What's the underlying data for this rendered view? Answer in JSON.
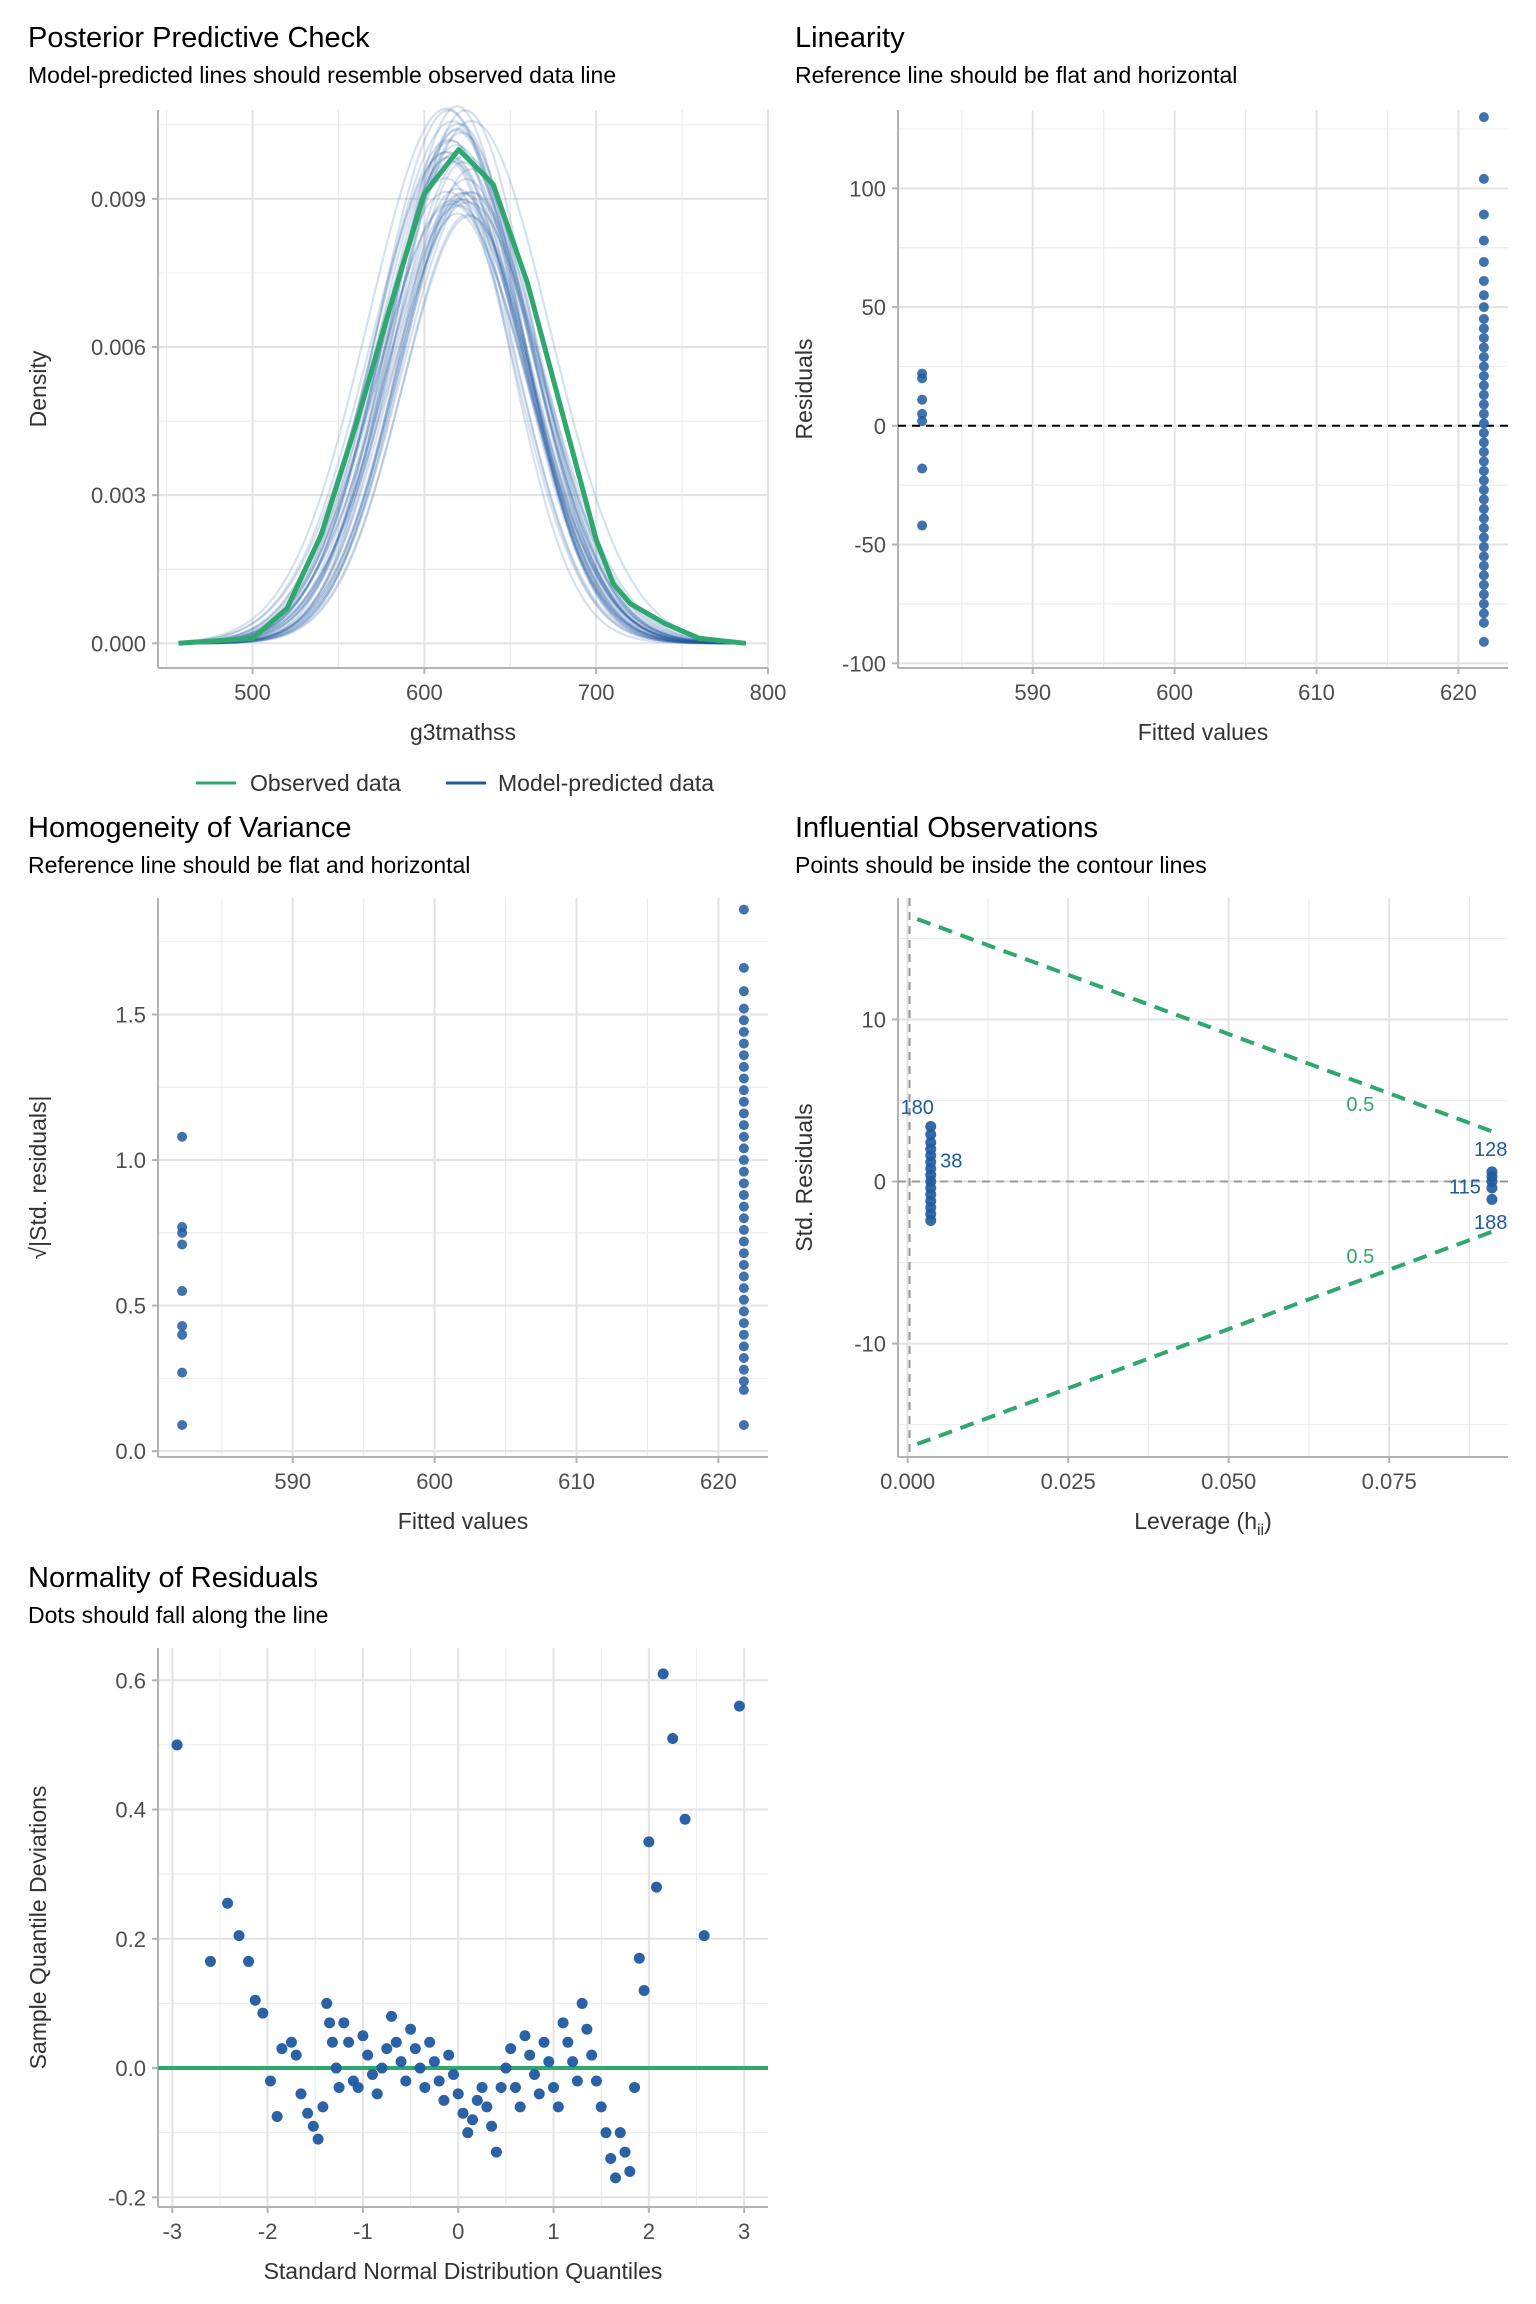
{
  "panels": {
    "ppc": {
      "title": "Posterior Predictive Check",
      "subtitle": "Model-predicted lines should resemble observed data line"
    },
    "lin": {
      "title": "Linearity",
      "subtitle": "Reference line should be flat and horizontal"
    },
    "hov": {
      "title": "Homogeneity of Variance",
      "subtitle": "Reference line should be flat and horizontal"
    },
    "inf": {
      "title": "Influential Observations",
      "subtitle": "Points should be inside the contour lines"
    },
    "nor": {
      "title": "Normality of Residuals",
      "subtitle": "Dots should fall along the line"
    }
  },
  "colors": {
    "observed": "#2fa86f",
    "predicted": "#1f5aa0",
    "points": "#1f5aa0",
    "contour": "#2fa86f",
    "grid": "#e3e3e3"
  },
  "chart_data": [
    {
      "id": "ppc",
      "type": "line",
      "title": "Posterior Predictive Check",
      "subtitle": "Model-predicted lines should resemble observed data line",
      "xlabel": "g3tmathss",
      "ylabel": "Density",
      "xlim": [
        445,
        800
      ],
      "ylim": [
        -0.0005,
        0.0108
      ],
      "xticks": [
        500,
        600,
        700,
        800
      ],
      "yticks": [
        0.0,
        0.003,
        0.006,
        0.009
      ],
      "ytick_labels": [
        "0.000",
        "0.003",
        "0.006",
        "0.009"
      ],
      "legend": {
        "position": "bottom",
        "entries": [
          "Observed data",
          "Model-predicted data"
        ]
      },
      "series": [
        {
          "name": "Observed data",
          "color": "#2fa86f",
          "x": [
            457,
            500,
            520,
            540,
            560,
            580,
            600,
            620,
            640,
            660,
            680,
            700,
            710,
            720,
            740,
            760,
            787
          ],
          "y": [
            0.0,
            0.0001,
            0.0007,
            0.0022,
            0.0044,
            0.0068,
            0.0091,
            0.01,
            0.0093,
            0.0073,
            0.0047,
            0.0021,
            0.0012,
            0.0008,
            0.0004,
            0.0001,
            0.0
          ]
        },
        {
          "name": "Model-predicted data",
          "color": "#1f5aa0",
          "model": "normal",
          "mean": 620,
          "sd": 40,
          "peak_range": [
            0.0086,
            0.0109
          ],
          "draws": 40
        }
      ]
    },
    {
      "id": "lin",
      "type": "scatter",
      "title": "Linearity",
      "subtitle": "Reference line should be flat and horizontal",
      "xlabel": "Fitted values",
      "ylabel": "Residuals",
      "xlim": [
        580.5,
        623.5
      ],
      "ylim": [
        -102,
        133
      ],
      "xticks": [
        590,
        600,
        610,
        620
      ],
      "yticks": [
        -100,
        -50,
        0,
        50,
        100
      ],
      "reference_line": 0,
      "groups": [
        {
          "x": 582.2,
          "y": [
            22,
            20,
            11,
            5,
            2,
            -18,
            -42
          ]
        },
        {
          "x": 621.8,
          "y": [
            130,
            104,
            89,
            78,
            69,
            61,
            55,
            50,
            45,
            41,
            37,
            33,
            29,
            25,
            21,
            17,
            13,
            9,
            5,
            1,
            -3,
            -7,
            -11,
            -15,
            -19,
            -23,
            -27,
            -31,
            -35,
            -39,
            -43,
            -47,
            -51,
            -55,
            -59,
            -63,
            -67,
            -71,
            -75,
            -79,
            -83,
            -91
          ]
        }
      ]
    },
    {
      "id": "hov",
      "type": "scatter",
      "title": "Homogeneity of Variance",
      "subtitle": "Reference line should be flat and horizontal",
      "xlabel": "Fitted values",
      "ylabel": "√|Std. residuals|",
      "xlim": [
        580.5,
        623.5
      ],
      "ylim": [
        -0.02,
        1.9
      ],
      "xticks": [
        590,
        600,
        610,
        620
      ],
      "yticks": [
        0.0,
        0.5,
        1.0,
        1.5
      ],
      "ytick_labels": [
        "0.0",
        "0.5",
        "1.0",
        "1.5"
      ],
      "groups": [
        {
          "x": 582.2,
          "y": [
            1.08,
            0.77,
            0.75,
            0.71,
            0.55,
            0.43,
            0.4,
            0.27,
            0.09
          ]
        },
        {
          "x": 621.8,
          "y": [
            1.86,
            1.66,
            1.58,
            1.52,
            1.48,
            1.44,
            1.4,
            1.36,
            1.32,
            1.28,
            1.24,
            1.2,
            1.16,
            1.12,
            1.08,
            1.04,
            1.0,
            0.96,
            0.92,
            0.88,
            0.84,
            0.8,
            0.76,
            0.72,
            0.68,
            0.64,
            0.6,
            0.56,
            0.52,
            0.48,
            0.44,
            0.4,
            0.36,
            0.32,
            0.28,
            0.24,
            0.21,
            0.09
          ]
        }
      ]
    },
    {
      "id": "inf",
      "type": "scatter",
      "title": "Influential Observations",
      "subtitle": "Points should be inside the contour lines",
      "xlabel": "Leverage (h",
      "xlabel_sub": "ii",
      "xlabel_end": ")",
      "ylabel": "Std. Residuals",
      "xlim": [
        -0.0015,
        0.0935
      ],
      "ylim": [
        -17,
        17.5
      ],
      "xticks": [
        0.0,
        0.025,
        0.05,
        0.075
      ],
      "xtick_labels": [
        "0.000",
        "0.025",
        "0.050",
        "0.075"
      ],
      "yticks": [
        -10,
        0,
        10
      ],
      "reference_h": 0,
      "reference_v": 0.0003,
      "contour_label": "0.5",
      "contour_labels": [
        {
          "x": 0.0705,
          "y": 4.8
        },
        {
          "x": 0.0705,
          "y": -4.6
        }
      ],
      "contour_upper": [
        [
          0.0015,
          16.2
        ],
        [
          0.091,
          3.1
        ]
      ],
      "contour_lower": [
        [
          0.0015,
          -16.2
        ],
        [
          0.091,
          -3.1
        ]
      ],
      "groups": [
        {
          "x": 0.0036,
          "y": [
            3.4,
            2.9,
            2.4,
            2.0,
            1.6,
            1.2,
            0.8,
            0.4,
            0.0,
            -0.4,
            -0.8,
            -1.2,
            -1.6,
            -2.0,
            -2.4
          ]
        },
        {
          "x": 0.091,
          "y": [
            0.6,
            0.3,
            0.0,
            -0.4,
            -1.1
          ]
        }
      ],
      "point_labels": [
        {
          "text": "180",
          "x": 0.0015,
          "y": 4.6
        },
        {
          "text": "38",
          "x": 0.0068,
          "y": 1.3
        },
        {
          "text": "128",
          "x": 0.0908,
          "y": 2.0
        },
        {
          "text": "115",
          "x": 0.0868,
          "y": -0.3
        },
        {
          "text": "188",
          "x": 0.0908,
          "y": -2.5
        }
      ]
    },
    {
      "id": "nor",
      "type": "scatter",
      "title": "Normality of Residuals",
      "subtitle": "Dots should fall along the line",
      "xlabel": "Standard Normal Distribution Quantiles",
      "ylabel": "Sample Quantile Deviations",
      "xlim": [
        -3.15,
        3.25
      ],
      "ylim": [
        -0.215,
        0.65
      ],
      "xticks": [
        -3,
        -2,
        -1,
        0,
        1,
        2,
        3
      ],
      "yticks": [
        -0.2,
        0.0,
        0.2,
        0.4,
        0.6
      ],
      "ytick_labels": [
        "-0.2",
        "0.0",
        "0.2",
        "0.4",
        "0.6"
      ],
      "reference_line": 0,
      "x": [
        -2.95,
        -2.6,
        -2.42,
        -2.3,
        -2.2,
        -2.13,
        -2.05,
        -1.97,
        -1.9,
        -1.85,
        -1.75,
        -1.7,
        -1.65,
        -1.58,
        -1.52,
        -1.47,
        -1.42,
        -1.38,
        -1.35,
        -1.32,
        -1.28,
        -1.25,
        -1.2,
        -1.15,
        -1.1,
        -1.05,
        -1.0,
        -0.95,
        -0.9,
        -0.85,
        -0.8,
        -0.75,
        -0.7,
        -0.65,
        -0.6,
        -0.55,
        -0.5,
        -0.45,
        -0.4,
        -0.35,
        -0.3,
        -0.25,
        -0.2,
        -0.15,
        -0.1,
        -0.05,
        0.0,
        0.05,
        0.1,
        0.15,
        0.2,
        0.25,
        0.3,
        0.35,
        0.4,
        0.45,
        0.5,
        0.55,
        0.6,
        0.65,
        0.7,
        0.75,
        0.8,
        0.85,
        0.9,
        0.95,
        1.0,
        1.05,
        1.1,
        1.15,
        1.2,
        1.25,
        1.3,
        1.35,
        1.4,
        1.45,
        1.5,
        1.55,
        1.6,
        1.65,
        1.7,
        1.75,
        1.8,
        1.85,
        1.9,
        1.95,
        2.0,
        2.08,
        2.15,
        2.25,
        2.38,
        2.58,
        2.95
      ],
      "y": [
        0.5,
        0.165,
        0.255,
        0.205,
        0.165,
        0.105,
        0.085,
        -0.02,
        -0.075,
        0.03,
        0.04,
        0.02,
        -0.04,
        -0.07,
        -0.09,
        -0.11,
        -0.06,
        0.1,
        0.07,
        0.04,
        0.0,
        -0.03,
        0.07,
        0.04,
        -0.02,
        -0.03,
        0.05,
        0.02,
        -0.01,
        -0.04,
        0.0,
        0.03,
        0.08,
        0.04,
        0.01,
        -0.02,
        0.06,
        0.03,
        0.0,
        -0.03,
        0.04,
        0.01,
        -0.02,
        -0.05,
        0.02,
        -0.01,
        -0.04,
        -0.07,
        -0.1,
        -0.08,
        -0.05,
        -0.03,
        -0.06,
        -0.09,
        -0.13,
        -0.03,
        0.0,
        0.03,
        -0.03,
        -0.06,
        0.05,
        0.02,
        -0.01,
        -0.04,
        0.04,
        0.01,
        -0.03,
        -0.06,
        0.07,
        0.04,
        0.01,
        -0.02,
        0.1,
        0.06,
        0.02,
        -0.02,
        -0.06,
        -0.1,
        -0.14,
        -0.17,
        -0.1,
        -0.13,
        -0.16,
        -0.03,
        0.17,
        0.12,
        0.35,
        0.28,
        0.61,
        0.51,
        0.385,
        0.205,
        0.56
      ]
    }
  ]
}
